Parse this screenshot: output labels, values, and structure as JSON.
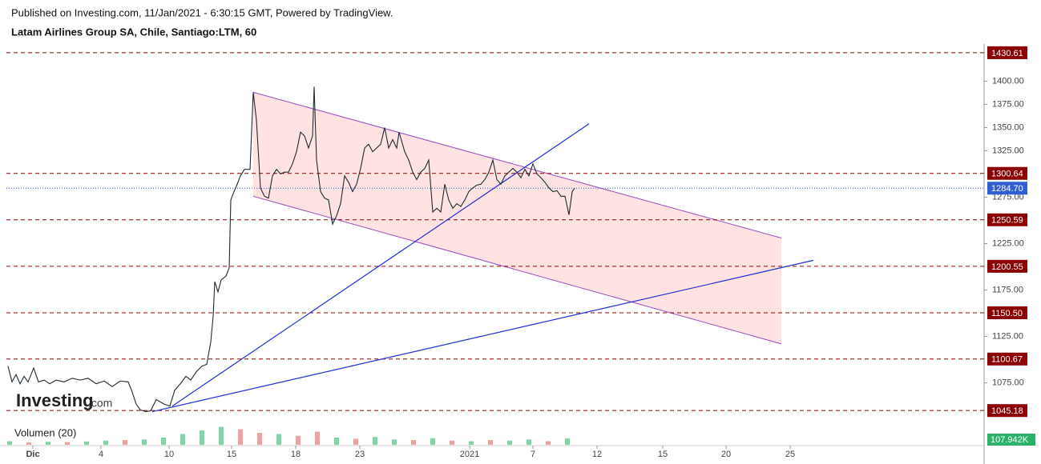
{
  "chart_data": {
    "type": "line",
    "publisher": "Published on Investing.com, 11/Jan/2021 - 6:30:15 GMT, Powered by TradingView.",
    "title": "Latam Airlines Group SA, Chile, Santiago:LTM, 60",
    "logo": "Investing",
    "logo_suffix": ".com",
    "xlim": [
      0,
      614
    ],
    "ylim": [
      1035,
      1440
    ],
    "xticks": [
      {
        "value": 20.5,
        "label": "Dic"
      },
      {
        "value": 63,
        "label": "4"
      },
      {
        "value": 105.5,
        "label": "10"
      },
      {
        "value": 144.5,
        "label": "15"
      },
      {
        "value": 184.5,
        "label": "18"
      },
      {
        "value": 224.5,
        "label": "23"
      },
      {
        "value": 293,
        "label": "2021"
      },
      {
        "value": 332.5,
        "label": "7"
      },
      {
        "value": 372.5,
        "label": "12"
      },
      {
        "value": 413.5,
        "label": "15"
      },
      {
        "value": 453,
        "label": "20"
      },
      {
        "value": 493,
        "label": "25"
      }
    ],
    "yticks": [
      {
        "value": 1075,
        "label": "1075.00"
      },
      {
        "value": 1125,
        "label": "1125.00"
      },
      {
        "value": 1175,
        "label": "1175.00"
      },
      {
        "value": 1225,
        "label": "1225.00"
      },
      {
        "value": 1275,
        "label": "1275.00"
      },
      {
        "value": 1325,
        "label": "1325.00"
      },
      {
        "value": 1350,
        "label": "1350.00"
      },
      {
        "value": 1375,
        "label": "1375.00"
      },
      {
        "value": 1400,
        "label": "1400.00"
      }
    ],
    "series": [
      {
        "name": "LTM",
        "color": "#1e2a32",
        "x": [
          5,
          7.5,
          10,
          12.5,
          15,
          17.5,
          21,
          24,
          27.5,
          31,
          35,
          40,
          45,
          50,
          55,
          60,
          65,
          70,
          75,
          80,
          82.5,
          85,
          87.5,
          91,
          94,
          97.5,
          102.5,
          106,
          109,
          112.5,
          116,
          119,
          122.5,
          126,
          129,
          131.5,
          133,
          134,
          136,
          138,
          141,
          143,
          144,
          146,
          148,
          150,
          152.5,
          156,
          158,
          160,
          162.5,
          165,
          167.5,
          170,
          172.5,
          175,
          177.5,
          180,
          182.5,
          185,
          187.5,
          190,
          192.5,
          195,
          196,
          197.5,
          200,
          202.5,
          205,
          207.5,
          210,
          212.5,
          215,
          217.5,
          220,
          222.5,
          225,
          227.5,
          230,
          232.5,
          235,
          237.5,
          240,
          242.5,
          245,
          247.5,
          249,
          252.5,
          255,
          257.5,
          260,
          262.5,
          265,
          267.5,
          270,
          272.5,
          275,
          277.5,
          280,
          282.5,
          285,
          287.5,
          290,
          292.5,
          295,
          297.5,
          300,
          302.5,
          305,
          307.5,
          310,
          312.5,
          315,
          317.5,
          320,
          322.5,
          325,
          327.5,
          330,
          332.5,
          335,
          337.5,
          340,
          342.5,
          345,
          347.5,
          350,
          352.5,
          355,
          357,
          358.5
        ],
        "values": [
          1093,
          1076,
          1084,
          1074,
          1082,
          1076,
          1091,
          1076,
          1078,
          1074,
          1078,
          1076,
          1080,
          1078,
          1080,
          1074,
          1077,
          1071,
          1077,
          1076,
          1065,
          1052,
          1046,
          1044,
          1045,
          1057,
          1052,
          1050,
          1067,
          1074,
          1082,
          1078,
          1087,
          1093,
          1095,
          1119,
          1147,
          1184,
          1173,
          1186,
          1190,
          1199,
          1272,
          1281,
          1289,
          1298,
          1305,
          1305,
          1388,
          1358,
          1285,
          1276,
          1274,
          1298,
          1305,
          1300,
          1302,
          1302,
          1311,
          1324,
          1345,
          1341,
          1328,
          1341,
          1394,
          1315,
          1281,
          1274,
          1272,
          1246,
          1255,
          1268,
          1298,
          1291,
          1281,
          1289,
          1306,
          1328,
          1332,
          1324,
          1328,
          1332,
          1350,
          1328,
          1337,
          1328,
          1345,
          1324,
          1315,
          1302,
          1294,
          1302,
          1306,
          1315,
          1259,
          1263,
          1259,
          1289,
          1272,
          1263,
          1268,
          1265,
          1272,
          1281,
          1285,
          1288,
          1289,
          1294,
          1302,
          1315,
          1294,
          1289,
          1298,
          1302,
          1306,
          1302,
          1296,
          1305,
          1298,
          1311,
          1300,
          1296,
          1291,
          1285,
          1281,
          1282,
          1276,
          1276,
          1256,
          1281,
          1284.7
        ]
      }
    ],
    "levels": [
      {
        "value": 1430.61,
        "label": "1430.61"
      },
      {
        "value": 1300.64,
        "label": "1300.64"
      },
      {
        "value": 1250.59,
        "label": "1250.59"
      },
      {
        "value": 1200.55,
        "label": "1200.55"
      },
      {
        "value": 1150.5,
        "label": "1150.50"
      },
      {
        "value": 1100.67,
        "label": "1100.67"
      },
      {
        "value": 1045.18,
        "label": "1045.18"
      }
    ],
    "level_color": "#8b0000",
    "last_price": {
      "value": 1284.7,
      "label": "1284.70",
      "color": "#2f5fd0"
    },
    "channel": {
      "color": "#9b4dbf",
      "fill": "#ffdede",
      "top": [
        [
          158,
          1388
        ],
        [
          487.5,
          1231
        ]
      ],
      "bottom": [
        [
          158,
          1276
        ],
        [
          487.5,
          1117
        ]
      ]
    },
    "drawings": [
      {
        "color": "#1f2fd6",
        "points": [
          [
            107.5,
            1050
          ],
          [
            367.5,
            1354
          ]
        ]
      },
      {
        "color": "#1f2fd6",
        "points": [
          [
            95,
            1044
          ],
          [
            507.5,
            1207
          ]
        ]
      }
    ],
    "volume": {
      "label": "Volumen (20)",
      "last": "107.942K",
      "ylim": [
        0,
        400
      ],
      "x": [
        6,
        18,
        30,
        42,
        54,
        66,
        78,
        90,
        102,
        114,
        126,
        138,
        150,
        162,
        174,
        186,
        198,
        210,
        222,
        234,
        246,
        258,
        270,
        282,
        294,
        306,
        318,
        330,
        342,
        354
      ],
      "values": [
        60,
        40,
        50,
        45,
        55,
        70,
        80,
        90,
        120,
        180,
        240,
        300,
        260,
        200,
        180,
        150,
        220,
        120,
        100,
        130,
        90,
        80,
        110,
        70,
        60,
        80,
        70,
        90,
        60,
        108
      ],
      "colors": [
        "#7fd6a8",
        "#f2a0a0",
        "#7fd6a8",
        "#f2a0a0",
        "#7fd6a8",
        "#7fd6a8",
        "#f2a0a0",
        "#7fd6a8",
        "#7fd6a8",
        "#7fd6a8",
        "#7fd6a8",
        "#7fd6a8",
        "#f2a0a0",
        "#f2a0a0",
        "#7fd6a8",
        "#f2a0a0",
        "#f2a0a0",
        "#7fd6a8",
        "#f2a0a0",
        "#7fd6a8",
        "#7fd6a8",
        "#f2a0a0",
        "#7fd6a8",
        "#f2a0a0",
        "#7fd6a8",
        "#f2a0a0",
        "#7fd6a8",
        "#7fd6a8",
        "#f2a0a0",
        "#7fd6a8"
      ],
      "color": "#2cb36b"
    }
  }
}
